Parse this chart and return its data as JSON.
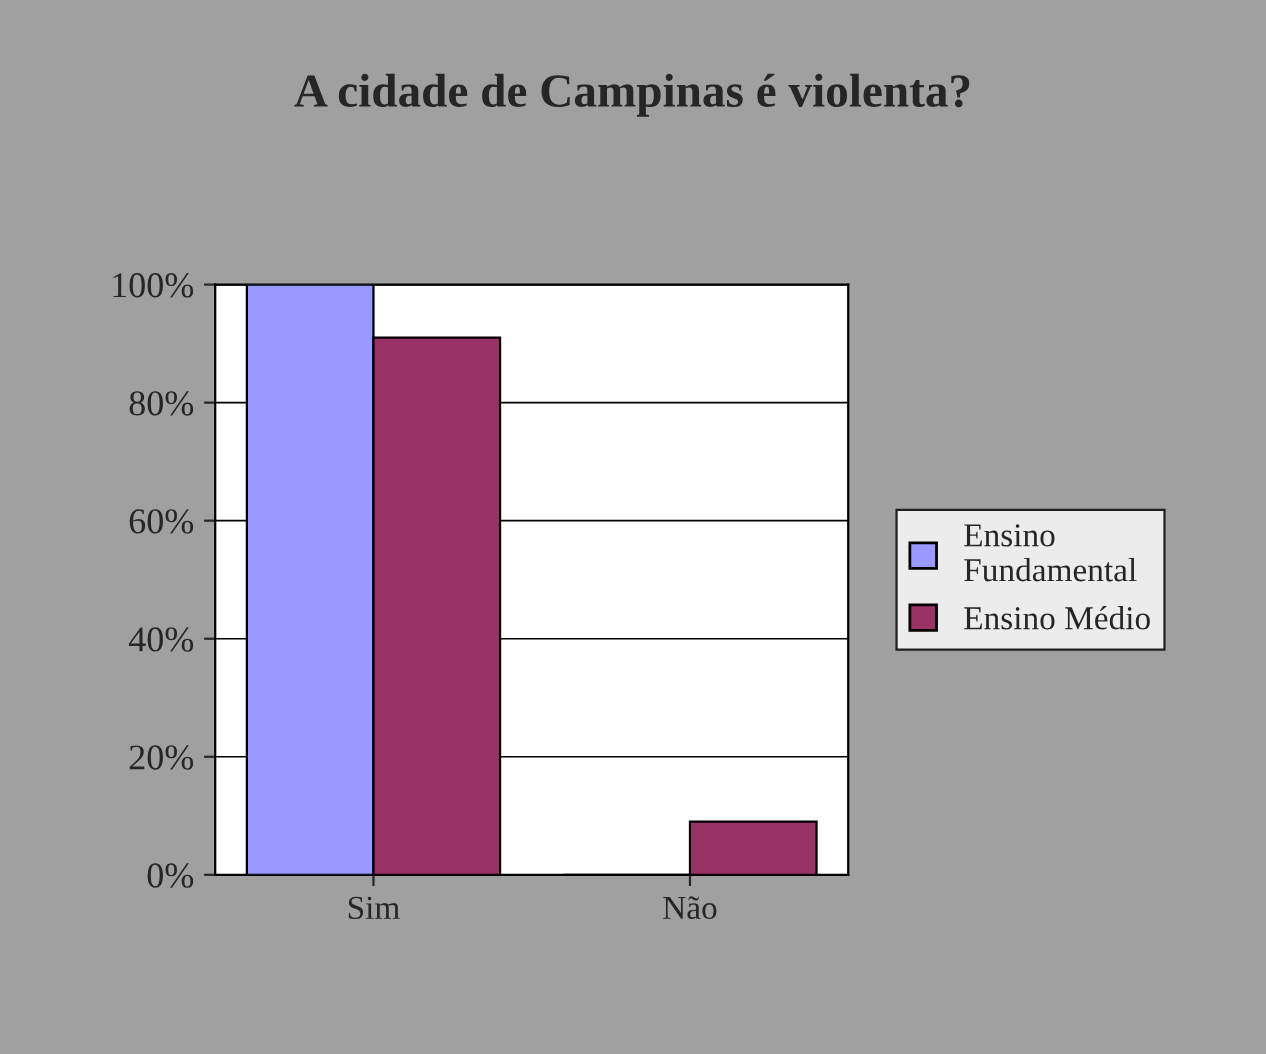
{
  "chart_data": {
    "type": "bar",
    "title": "A cidade de Campinas é violenta?",
    "categories": [
      "Sim",
      "Não"
    ],
    "series": [
      {
        "name": "Ensino Fundamental",
        "color": "#9999ff",
        "values": [
          100,
          0
        ]
      },
      {
        "name": "Ensino Médio",
        "color": "#993366",
        "values": [
          91,
          9
        ]
      }
    ],
    "ylim": [
      0,
      100
    ],
    "yticks": [
      {
        "value": 0,
        "label": "0%"
      },
      {
        "value": 20,
        "label": "20%"
      },
      {
        "value": 40,
        "label": "40%"
      },
      {
        "value": 60,
        "label": "60%"
      },
      {
        "value": 80,
        "label": "80%"
      },
      {
        "value": 100,
        "label": "100%"
      }
    ],
    "grid": "y",
    "legend": "right"
  }
}
